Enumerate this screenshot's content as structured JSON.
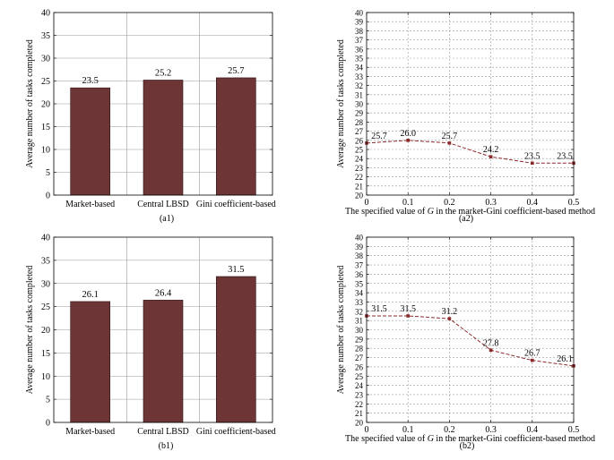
{
  "chart_data": [
    {
      "id": "a1",
      "type": "bar",
      "caption": "(a1)",
      "ylabel": "Average number of tasks completed",
      "xlabel": "",
      "categories": [
        "Market-based",
        "Central LBSD",
        "Gini coefficient-based"
      ],
      "values": [
        23.5,
        25.2,
        25.7
      ],
      "data_labels": [
        "23.5",
        "25.2",
        "25.7"
      ],
      "ylim": [
        0,
        40
      ],
      "yticks": [
        0,
        5,
        10,
        15,
        20,
        25,
        30,
        35,
        40
      ],
      "grid": true,
      "bar_color": "#6e3536"
    },
    {
      "id": "a2",
      "type": "line",
      "caption": "(a2)",
      "ylabel": "Average number of tasks completed",
      "xlabel_prefix": "The specified value of ",
      "xlabel_var": "G",
      "xlabel_suffix": " in the market-Gini coefficient-based method",
      "x": [
        0,
        0.1,
        0.2,
        0.3,
        0.4,
        0.5
      ],
      "xticks": [
        "0",
        "0.1",
        "0.2",
        "0.3",
        "0.4",
        "0.5"
      ],
      "values": [
        25.7,
        26.0,
        25.7,
        24.2,
        23.5,
        23.5
      ],
      "data_labels": [
        "25.7",
        "26.0",
        "25.7",
        "24.2",
        "23.5",
        "23.5"
      ],
      "xlim": [
        0,
        0.5
      ],
      "ylim": [
        20,
        40
      ],
      "yticks": [
        20,
        21,
        22,
        23,
        24,
        25,
        26,
        27,
        28,
        29,
        30,
        31,
        32,
        33,
        34,
        35,
        36,
        37,
        38,
        39,
        40
      ],
      "grid": true,
      "line_color": "#8b2a2a"
    },
    {
      "id": "b1",
      "type": "bar",
      "caption": "(b1)",
      "ylabel": "Average number of tasks completed",
      "xlabel": "",
      "categories": [
        "Market-based",
        "Central LBSD",
        "Gini coefficient-based"
      ],
      "values": [
        26.1,
        26.4,
        31.5
      ],
      "data_labels": [
        "26.1",
        "26.4",
        "31.5"
      ],
      "ylim": [
        0,
        40
      ],
      "yticks": [
        0,
        5,
        10,
        15,
        20,
        25,
        30,
        35,
        40
      ],
      "grid": true,
      "bar_color": "#6e3536"
    },
    {
      "id": "b2",
      "type": "line",
      "caption": "(b2)",
      "ylabel": "Average number of tasks completed",
      "xlabel_prefix": "The specified value of ",
      "xlabel_var": "G",
      "xlabel_suffix": " in the market-Gini coefficient-based method",
      "x": [
        0,
        0.1,
        0.2,
        0.3,
        0.4,
        0.5
      ],
      "xticks": [
        "0",
        "0.1",
        "0.2",
        "0.3",
        "0.4",
        "0.5"
      ],
      "values": [
        31.5,
        31.5,
        31.2,
        27.8,
        26.7,
        26.1
      ],
      "data_labels": [
        "31.5",
        "31.5",
        "31.2",
        "27.8",
        "26.7",
        "26.1"
      ],
      "xlim": [
        0,
        0.5
      ],
      "ylim": [
        20,
        40
      ],
      "yticks": [
        20,
        21,
        22,
        23,
        24,
        25,
        26,
        27,
        28,
        29,
        30,
        31,
        32,
        33,
        34,
        35,
        36,
        37,
        38,
        39,
        40
      ],
      "grid": true,
      "line_color": "#8b2a2a"
    }
  ]
}
